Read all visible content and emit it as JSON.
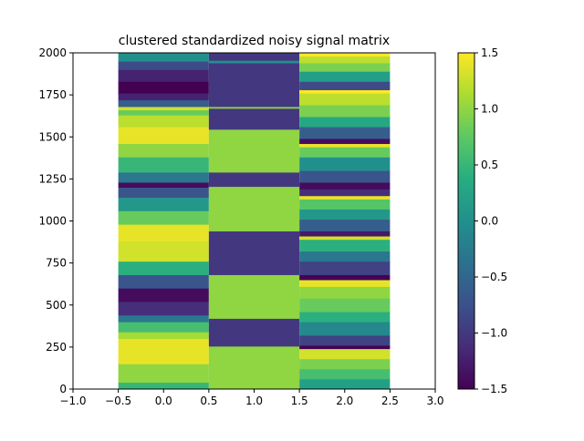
{
  "chart_data": {
    "type": "heatmap",
    "title": "clustered standardized noisy signal matrix",
    "xlabel": "",
    "ylabel": "",
    "xlim": [
      -1.0,
      3.0
    ],
    "ylim": [
      0,
      2000
    ],
    "x_ticks": [
      "−1.0",
      "−0.5",
      "0.0",
      "0.5",
      "1.0",
      "1.5",
      "2.0",
      "2.5",
      "3.0"
    ],
    "x_tick_values": [
      -1.0,
      -0.5,
      0.0,
      0.5,
      1.0,
      1.5,
      2.0,
      2.5,
      3.0
    ],
    "y_ticks": [
      "0",
      "250",
      "500",
      "750",
      "1000",
      "1250",
      "1500",
      "1750",
      "2000"
    ],
    "y_tick_values": [
      0,
      250,
      500,
      750,
      1000,
      1250,
      1500,
      1750,
      2000
    ],
    "colormap": "viridis",
    "color_range": [
      -1.5,
      1.5
    ],
    "colorbar_ticks": [
      "1.5",
      "1.0",
      "0.5",
      "0.0",
      "−0.5",
      "−1.0",
      "−1.5"
    ],
    "colorbar_tick_values": [
      1.5,
      1.0,
      0.5,
      0.0,
      -0.5,
      -1.0,
      -1.5
    ],
    "columns": [
      {
        "x_center": 0,
        "description": "smooth sinusoid-like column",
        "segments": [
          {
            "y0": 0,
            "y1": 40,
            "value": 0.5
          },
          {
            "y0": 40,
            "y1": 150,
            "value": 1.0
          },
          {
            "y0": 150,
            "y1": 300,
            "value": 1.4
          },
          {
            "y0": 300,
            "y1": 340,
            "value": 1.1
          },
          {
            "y0": 340,
            "y1": 400,
            "value": 0.6
          },
          {
            "y0": 400,
            "y1": 440,
            "value": -0.3
          },
          {
            "y0": 440,
            "y1": 520,
            "value": -1.1
          },
          {
            "y0": 520,
            "y1": 600,
            "value": -1.4
          },
          {
            "y0": 600,
            "y1": 680,
            "value": -0.7
          },
          {
            "y0": 680,
            "y1": 760,
            "value": 0.4
          },
          {
            "y0": 760,
            "y1": 880,
            "value": 1.3
          },
          {
            "y0": 880,
            "y1": 980,
            "value": 1.4
          },
          {
            "y0": 980,
            "y1": 1060,
            "value": 0.8
          },
          {
            "y0": 1060,
            "y1": 1140,
            "value": 0.1
          },
          {
            "y0": 1140,
            "y1": 1200,
            "value": -0.7
          },
          {
            "y0": 1200,
            "y1": 1230,
            "value": -1.4
          },
          {
            "y0": 1230,
            "y1": 1290,
            "value": -0.3
          },
          {
            "y0": 1290,
            "y1": 1380,
            "value": 0.5
          },
          {
            "y0": 1380,
            "y1": 1460,
            "value": 1.0
          },
          {
            "y0": 1460,
            "y1": 1560,
            "value": 1.4
          },
          {
            "y0": 1560,
            "y1": 1630,
            "value": 1.2
          },
          {
            "y0": 1630,
            "y1": 1660,
            "value": 0.8
          },
          {
            "y0": 1660,
            "y1": 1680,
            "value": 1.3
          },
          {
            "y0": 1680,
            "y1": 1720,
            "value": -0.6
          },
          {
            "y0": 1720,
            "y1": 1760,
            "value": -1.2
          },
          {
            "y0": 1760,
            "y1": 1830,
            "value": -1.5
          },
          {
            "y0": 1830,
            "y1": 1900,
            "value": -1.2
          },
          {
            "y0": 1900,
            "y1": 1950,
            "value": -0.8
          },
          {
            "y0": 1950,
            "y1": 2000,
            "value": 0.0
          }
        ]
      },
      {
        "x_center": 1,
        "description": "square-wave column",
        "segments": [
          {
            "y0": 0,
            "y1": 255,
            "value": 1.0
          },
          {
            "y0": 255,
            "y1": 420,
            "value": -1.0
          },
          {
            "y0": 420,
            "y1": 680,
            "value": 1.0
          },
          {
            "y0": 680,
            "y1": 940,
            "value": -1.0
          },
          {
            "y0": 940,
            "y1": 1205,
            "value": 1.0
          },
          {
            "y0": 1205,
            "y1": 1290,
            "value": -1.0
          },
          {
            "y0": 1290,
            "y1": 1545,
            "value": 1.0
          },
          {
            "y0": 1545,
            "y1": 1670,
            "value": -1.0
          },
          {
            "y0": 1670,
            "y1": 1680,
            "value": 1.0
          },
          {
            "y0": 1680,
            "y1": 1940,
            "value": -1.0
          },
          {
            "y0": 1940,
            "y1": 1955,
            "value": 0.0
          },
          {
            "y0": 1955,
            "y1": 2000,
            "value": -1.0
          }
        ]
      },
      {
        "x_center": 2,
        "description": "sawtooth-like column",
        "segments": [
          {
            "y0": 0,
            "y1": 60,
            "value": 0.2
          },
          {
            "y0": 60,
            "y1": 120,
            "value": 0.6
          },
          {
            "y0": 120,
            "y1": 180,
            "value": 0.9
          },
          {
            "y0": 180,
            "y1": 240,
            "value": 1.3
          },
          {
            "y0": 240,
            "y1": 260,
            "value": -1.5
          },
          {
            "y0": 260,
            "y1": 320,
            "value": -0.9
          },
          {
            "y0": 320,
            "y1": 400,
            "value": -0.1
          },
          {
            "y0": 400,
            "y1": 460,
            "value": 0.4
          },
          {
            "y0": 460,
            "y1": 540,
            "value": 0.8
          },
          {
            "y0": 540,
            "y1": 610,
            "value": 1.0
          },
          {
            "y0": 610,
            "y1": 650,
            "value": 1.4
          },
          {
            "y0": 650,
            "y1": 680,
            "value": -1.5
          },
          {
            "y0": 680,
            "y1": 760,
            "value": -0.9
          },
          {
            "y0": 760,
            "y1": 820,
            "value": -0.3
          },
          {
            "y0": 820,
            "y1": 890,
            "value": 0.4
          },
          {
            "y0": 890,
            "y1": 910,
            "value": 1.3
          },
          {
            "y0": 910,
            "y1": 940,
            "value": -1.3
          },
          {
            "y0": 940,
            "y1": 1010,
            "value": -0.6
          },
          {
            "y0": 1010,
            "y1": 1070,
            "value": 0.1
          },
          {
            "y0": 1070,
            "y1": 1130,
            "value": 0.7
          },
          {
            "y0": 1130,
            "y1": 1150,
            "value": 1.4
          },
          {
            "y0": 1150,
            "y1": 1190,
            "value": -1.1
          },
          {
            "y0": 1190,
            "y1": 1230,
            "value": -1.4
          },
          {
            "y0": 1230,
            "y1": 1300,
            "value": -0.7
          },
          {
            "y0": 1300,
            "y1": 1380,
            "value": 0.0
          },
          {
            "y0": 1380,
            "y1": 1440,
            "value": 0.8
          },
          {
            "y0": 1440,
            "y1": 1460,
            "value": 1.4
          },
          {
            "y0": 1460,
            "y1": 1490,
            "value": -1.4
          },
          {
            "y0": 1490,
            "y1": 1560,
            "value": -0.6
          },
          {
            "y0": 1560,
            "y1": 1620,
            "value": 0.3
          },
          {
            "y0": 1620,
            "y1": 1690,
            "value": 0.9
          },
          {
            "y0": 1690,
            "y1": 1760,
            "value": 1.2
          },
          {
            "y0": 1760,
            "y1": 1780,
            "value": 1.5
          },
          {
            "y0": 1780,
            "y1": 1830,
            "value": -0.8
          },
          {
            "y0": 1830,
            "y1": 1890,
            "value": 0.2
          },
          {
            "y0": 1890,
            "y1": 1940,
            "value": 0.9
          },
          {
            "y0": 1940,
            "y1": 1980,
            "value": 1.2
          },
          {
            "y0": 1980,
            "y1": 2000,
            "value": 1.5
          }
        ]
      }
    ]
  }
}
